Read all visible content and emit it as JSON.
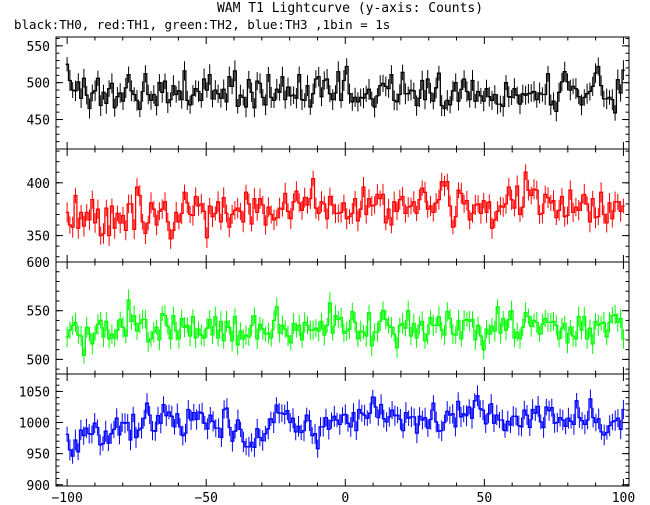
{
  "chart_data": {
    "type": "line",
    "title": "WAM T1 Lightcurve (y-axis: Counts)",
    "subtitle": "black:TH0, red:TH1, green:TH2, blue:TH3 ,1bin = 1s",
    "xlabel": "",
    "xlim": [
      -104,
      102
    ],
    "xticks": [
      -100,
      -50,
      0,
      50,
      100
    ],
    "xtick_labels": [
      "−100",
      "−50",
      "0",
      "50",
      "100"
    ],
    "grid": false,
    "legend": "none",
    "panels": [
      {
        "series": "TH0",
        "color": "#000000",
        "ylim": [
          410,
          562
        ],
        "yticks": [
          450,
          500,
          550
        ],
        "values": [
          525,
          503,
          490,
          489,
          501,
          479,
          506,
          483,
          465,
          486,
          489,
          506,
          469,
          487,
          472,
          492,
          499,
          466,
          481,
          486,
          475,
          493,
          511,
          489,
          484,
          476,
          464,
          488,
          512,
          484,
          476,
          484,
          469,
          500,
          487,
          502,
          473,
          477,
          496,
          484,
          489,
          477,
          516,
          476,
          470,
          483,
          492,
          488,
          476,
          505,
          490,
          511,
          478,
          490,
          485,
          479,
          491,
          474,
          508,
          495,
          516,
          468,
          483,
          480,
          467,
          504,
          487,
          466,
          502,
          499,
          480,
          470,
          511,
          480,
          476,
          491,
          487,
          508,
          477,
          494,
          482,
          483,
          479,
          511,
          477,
          476,
          496,
          467,
          485,
          505,
          508,
          481,
          503,
          505,
          485,
          477,
          486,
          515,
          476,
          503,
          522,
          485,
          474,
          480,
          474,
          480,
          479,
          485,
          491,
          478,
          467,
          482,
          496,
          499,
          495,
          492,
          511,
          476,
          474,
          484,
          514,
          485,
          485,
          490,
          489,
          469,
          479,
          503,
          477,
          505,
          486,
          475,
          493,
          513,
          469,
          465,
          476,
          470,
          489,
          500,
          475,
          491,
          505,
          488,
          477,
          503,
          475,
          488,
          482,
          475,
          492,
          481,
          476,
          484,
          471,
          471,
          468,
          500,
          481,
          480,
          492,
          483,
          471,
          485,
          483,
          485,
          486,
          488,
          477,
          486,
          484,
          484,
          512,
          470,
          475,
          461,
          487,
          501,
          515,
          501,
          490,
          495,
          492,
          481,
          470,
          480,
          485,
          488,
          495,
          513,
          522,
          496,
          478,
          478,
          480,
          477,
          459,
          504,
          486,
          517
        ]
      },
      {
        "series": "TH1",
        "color": "#ff0000",
        "ylim": [
          325,
          432
        ],
        "yticks": [
          350,
          400
        ],
        "values": [
          372,
          360,
          358,
          388,
          357,
          372,
          359,
          372,
          365,
          384,
          362,
          375,
          350,
          352,
          376,
          350,
          378,
          357,
          371,
          362,
          369,
          355,
          380,
          380,
          356,
          396,
          388,
          363,
          352,
          362,
          381,
          375,
          360,
          373,
          375,
          382,
          363,
          347,
          355,
          372,
          363,
          371,
          391,
          381,
          370,
          369,
          387,
          378,
          380,
          373,
          348,
          378,
          368,
          371,
          382,
          363,
          386,
          371,
          358,
          370,
          374,
          376,
          373,
          363,
          391,
          380,
          361,
          385,
          372,
          385,
          379,
          360,
          377,
          370,
          365,
          367,
          376,
          375,
          390,
          373,
          366,
          382,
          392,
          381,
          374,
          386,
          379,
          385,
          404,
          376,
          371,
          382,
          380,
          366,
          387,
          379,
          371,
          371,
          372,
          381,
          366,
          368,
          371,
          385,
          364,
          375,
          396,
          370,
          385,
          378,
          379,
          389,
          385,
          389,
          362,
          375,
          360,
          382,
          373,
          384,
          387,
          371,
          377,
          378,
          382,
          371,
          384,
          395,
          391,
          375,
          378,
          372,
          381,
          384,
          401,
          397,
          401,
          378,
          358,
          368,
          393,
          390,
          380,
          383,
          365,
          371,
          379,
          380,
          371,
          383,
          372,
          382,
          357,
          365,
          373,
          378,
          377,
          380,
          396,
          384,
          376,
          397,
          370,
          377,
          410,
          393,
          388,
          394,
          393,
          370,
          371,
          389,
          386,
          381,
          383,
          367,
          374,
          387,
          368,
          369,
          393,
          372,
          377,
          374,
          381,
          389,
          380,
          363,
          385,
          367,
          368,
          391,
          370,
          362,
          381,
          366,
          382,
          382,
          373,
          378
        ]
      },
      {
        "series": "TH2",
        "color": "#00ff00",
        "ylim": [
          485,
          600
        ],
        "yticks": [
          500,
          550,
          600
        ],
        "values": [
          523,
          530,
          535,
          538,
          525,
          524,
          504,
          533,
          526,
          516,
          527,
          536,
          540,
          523,
          539,
          521,
          526,
          522,
          530,
          541,
          533,
          524,
          561,
          539,
          545,
          529,
          537,
          541,
          541,
          518,
          521,
          528,
          533,
          520,
          547,
          545,
          534,
          521,
          545,
          529,
          521,
          542,
          533,
          535,
          524,
          544,
          522,
          531,
          525,
          522,
          532,
          541,
          525,
          544,
          522,
          539,
          519,
          539,
          533,
          519,
          544,
          515,
          529,
          521,
          525,
          523,
          535,
          545,
          521,
          536,
          531,
          526,
          527,
          522,
          540,
          554,
          527,
          535,
          531,
          524,
          517,
          537,
          530,
          535,
          520,
          538,
          535,
          530,
          530,
          532,
          529,
          539,
          525,
          535,
          558,
          527,
          545,
          541,
          543,
          527,
          529,
          531,
          549,
          538,
          521,
          529,
          528,
          524,
          548,
          514,
          528,
          528,
          539,
          550,
          541,
          535,
          533,
          526,
          512,
          535,
          537,
          532,
          550,
          524,
          537,
          522,
          535,
          539,
          519,
          526,
          543,
          535,
          535,
          544,
          530,
          525,
          549,
          542,
          526,
          525,
          540,
          521,
          540,
          541,
          539,
          541,
          520,
          535,
          524,
          510,
          531,
          526,
          534,
          529,
          554,
          527,
          542,
          530,
          541,
          550,
          522,
          528,
          521,
          533,
          548,
          544,
          534,
          540,
          538,
          526,
          536,
          542,
          538,
          538,
          539,
          535,
          521,
          532,
          537,
          517,
          533,
          524,
          521,
          544,
          530,
          544,
          521,
          532,
          516,
          539,
          535,
          537,
          538,
          523,
          538,
          545,
          546,
          538,
          542,
          521
        ]
      },
      {
        "series": "TH3",
        "color": "#0000ff",
        "ylim": [
          898,
          1078
        ],
        "yticks": [
          900,
          950,
          1000,
          1050
        ],
        "values": [
          981,
          956,
          946,
          972,
          953,
          988,
          979,
          991,
          982,
          981,
          999,
          992,
          964,
          966,
          986,
          967,
          982,
          989,
          1007,
          980,
          1000,
          999,
          1000,
          972,
          1013,
          976,
          988,
          991,
          1007,
          1031,
          1012,
          987,
          986,
          1011,
          999,
          1029,
          1011,
          1017,
          1010,
          993,
          1014,
          993,
          979,
          983,
          1021,
          1004,
          1016,
          1005,
          1017,
          1015,
          999,
          990,
          1012,
          1002,
          991,
          991,
          976,
          1021,
          1023,
          992,
          970,
          986,
          1004,
          989,
          969,
          961,
          961,
          968,
          960,
          990,
          976,
          971,
          982,
          990,
          1006,
          1000,
          1028,
          1015,
          1015,
          1013,
          1019,
          1000,
          1007,
          985,
          994,
          984,
          987,
          1012,
          1003,
          979,
          982,
          958,
          993,
          993,
          1008,
          989,
          1003,
          1010,
          1004,
          997,
          1012,
          1013,
          999,
          993,
          1016,
          987,
          1021,
          1015,
          1012,
          1007,
          1015,
          1041,
          1025,
          1008,
          1029,
          1006,
          1001,
          1009,
          1020,
          1011,
          1012,
          1005,
          987,
          1016,
          1007,
          1009,
          1009,
          983,
          1010,
          1004,
          1008,
          991,
          1005,
          1031,
          1001,
          986,
          987,
          1000,
          1018,
          1012,
          1014,
          993,
          1034,
          1009,
          1014,
          1011,
          1025,
          1007,
          1035,
          1043,
          1022,
          1020,
          998,
          1014,
          1030,
          999,
          1012,
          1004,
          1004,
          987,
          1002,
          996,
          1010,
          1010,
          995,
          993,
          1020,
          1012,
          992,
          1021,
          1015,
          1026,
          1001,
          992,
          1025,
          1019,
          1024,
          999,
          1000,
          1008,
          1004,
          994,
          1007,
          1002,
          997,
          1035,
          1008,
          1003,
          997,
          1004,
          1038,
          1008,
          1000,
          1006,
          985,
          980,
          984,
          995,
          1001,
          1003,
          1007,
          989,
          1021
        ]
      }
    ]
  }
}
